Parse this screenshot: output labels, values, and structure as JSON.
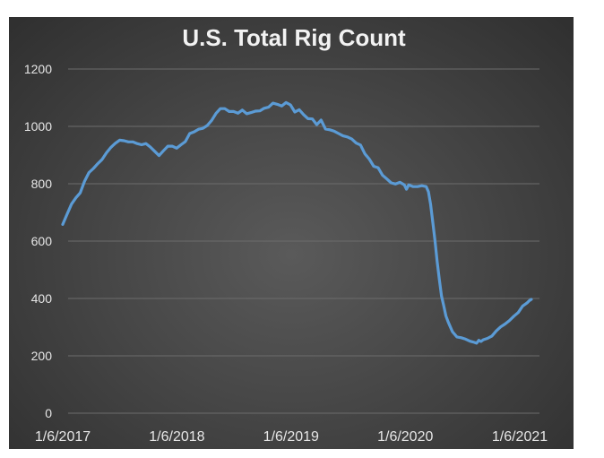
{
  "chart_data": {
    "type": "line",
    "title": "U.S. Total Rig Count",
    "xlabel": "",
    "ylabel": "",
    "ylim": [
      0,
      1200
    ],
    "yticks": [
      0,
      200,
      400,
      600,
      800,
      1000,
      1200
    ],
    "x_tick_labels": [
      "1/6/2017",
      "1/6/2018",
      "1/6/2019",
      "1/6/2020",
      "1/6/2021"
    ],
    "x_start": "1/6/2017",
    "grid": true,
    "legend": "none",
    "series_color": "#5b9bd5",
    "series": [
      {
        "points": [
          [
            "2017-01-06",
            658
          ],
          [
            "2017-01-20",
            694
          ],
          [
            "2017-02-03",
            729
          ],
          [
            "2017-02-17",
            751
          ],
          [
            "2017-03-03",
            768
          ],
          [
            "2017-03-17",
            809
          ],
          [
            "2017-03-31",
            839
          ],
          [
            "2017-04-14",
            853
          ],
          [
            "2017-04-28",
            870
          ],
          [
            "2017-05-12",
            885
          ],
          [
            "2017-05-26",
            908
          ],
          [
            "2017-06-09",
            927
          ],
          [
            "2017-06-23",
            941
          ],
          [
            "2017-07-07",
            952
          ],
          [
            "2017-07-21",
            950
          ],
          [
            "2017-08-04",
            946
          ],
          [
            "2017-08-18",
            946
          ],
          [
            "2017-09-01",
            940
          ],
          [
            "2017-09-15",
            936
          ],
          [
            "2017-09-29",
            940
          ],
          [
            "2017-10-13",
            928
          ],
          [
            "2017-10-27",
            913
          ],
          [
            "2017-11-10",
            898
          ],
          [
            "2017-11-24",
            915
          ],
          [
            "2017-12-08",
            931
          ],
          [
            "2017-12-22",
            931
          ],
          [
            "2018-01-05",
            924
          ],
          [
            "2018-01-19",
            936
          ],
          [
            "2018-02-02",
            947
          ],
          [
            "2018-02-16",
            975
          ],
          [
            "2018-03-02",
            981
          ],
          [
            "2018-03-16",
            990
          ],
          [
            "2018-03-30",
            993
          ],
          [
            "2018-04-13",
            1003
          ],
          [
            "2018-04-27",
            1021
          ],
          [
            "2018-05-11",
            1045
          ],
          [
            "2018-05-25",
            1062
          ],
          [
            "2018-06-08",
            1062
          ],
          [
            "2018-06-22",
            1052
          ],
          [
            "2018-07-06",
            1052
          ],
          [
            "2018-07-20",
            1046
          ],
          [
            "2018-08-03",
            1057
          ],
          [
            "2018-08-17",
            1044
          ],
          [
            "2018-08-31",
            1048
          ],
          [
            "2018-09-14",
            1053
          ],
          [
            "2018-09-28",
            1054
          ],
          [
            "2018-10-12",
            1063
          ],
          [
            "2018-10-26",
            1067
          ],
          [
            "2018-11-09",
            1081
          ],
          [
            "2018-11-23",
            1077
          ],
          [
            "2018-12-07",
            1071
          ],
          [
            "2018-12-21",
            1083
          ],
          [
            "2019-01-04",
            1075
          ],
          [
            "2019-01-18",
            1050
          ],
          [
            "2019-02-01",
            1058
          ],
          [
            "2019-02-15",
            1041
          ],
          [
            "2019-03-01",
            1027
          ],
          [
            "2019-03-15",
            1026
          ],
          [
            "2019-03-29",
            1006
          ],
          [
            "2019-04-12",
            1022
          ],
          [
            "2019-04-26",
            991
          ],
          [
            "2019-05-10",
            988
          ],
          [
            "2019-05-24",
            983
          ],
          [
            "2019-06-07",
            975
          ],
          [
            "2019-06-21",
            967
          ],
          [
            "2019-07-05",
            963
          ],
          [
            "2019-07-19",
            956
          ],
          [
            "2019-08-02",
            942
          ],
          [
            "2019-08-16",
            935
          ],
          [
            "2019-08-30",
            904
          ],
          [
            "2019-09-13",
            886
          ],
          [
            "2019-09-27",
            861
          ],
          [
            "2019-10-11",
            856
          ],
          [
            "2019-10-25",
            830
          ],
          [
            "2019-11-08",
            817
          ],
          [
            "2019-11-22",
            803
          ],
          [
            "2019-12-06",
            799
          ],
          [
            "2019-12-20",
            805
          ],
          [
            "2020-01-03",
            796
          ],
          [
            "2020-01-10",
            781
          ],
          [
            "2020-01-17",
            796
          ],
          [
            "2020-01-31",
            790
          ],
          [
            "2020-02-14",
            790
          ],
          [
            "2020-02-28",
            793
          ],
          [
            "2020-03-13",
            790
          ],
          [
            "2020-03-20",
            772
          ],
          [
            "2020-03-27",
            728
          ],
          [
            "2020-04-03",
            664
          ],
          [
            "2020-04-10",
            602
          ],
          [
            "2020-04-17",
            529
          ],
          [
            "2020-04-24",
            465
          ],
          [
            "2020-05-01",
            408
          ],
          [
            "2020-05-08",
            374
          ],
          [
            "2020-05-15",
            339
          ],
          [
            "2020-05-22",
            318
          ],
          [
            "2020-05-29",
            301
          ],
          [
            "2020-06-05",
            284
          ],
          [
            "2020-06-19",
            266
          ],
          [
            "2020-07-03",
            263
          ],
          [
            "2020-07-17",
            258
          ],
          [
            "2020-07-31",
            251
          ],
          [
            "2020-08-14",
            247
          ],
          [
            "2020-08-21",
            244
          ],
          [
            "2020-08-28",
            254
          ],
          [
            "2020-09-04",
            250
          ],
          [
            "2020-09-11",
            256
          ],
          [
            "2020-09-25",
            261
          ],
          [
            "2020-10-09",
            269
          ],
          [
            "2020-10-23",
            287
          ],
          [
            "2020-11-06",
            301
          ],
          [
            "2020-11-20",
            311
          ],
          [
            "2020-12-04",
            323
          ],
          [
            "2020-12-18",
            338
          ],
          [
            "2021-01-01",
            351
          ],
          [
            "2021-01-15",
            373
          ],
          [
            "2021-01-29",
            384
          ],
          [
            "2021-02-05",
            392
          ],
          [
            "2021-02-12",
            397
          ]
        ]
      }
    ]
  }
}
